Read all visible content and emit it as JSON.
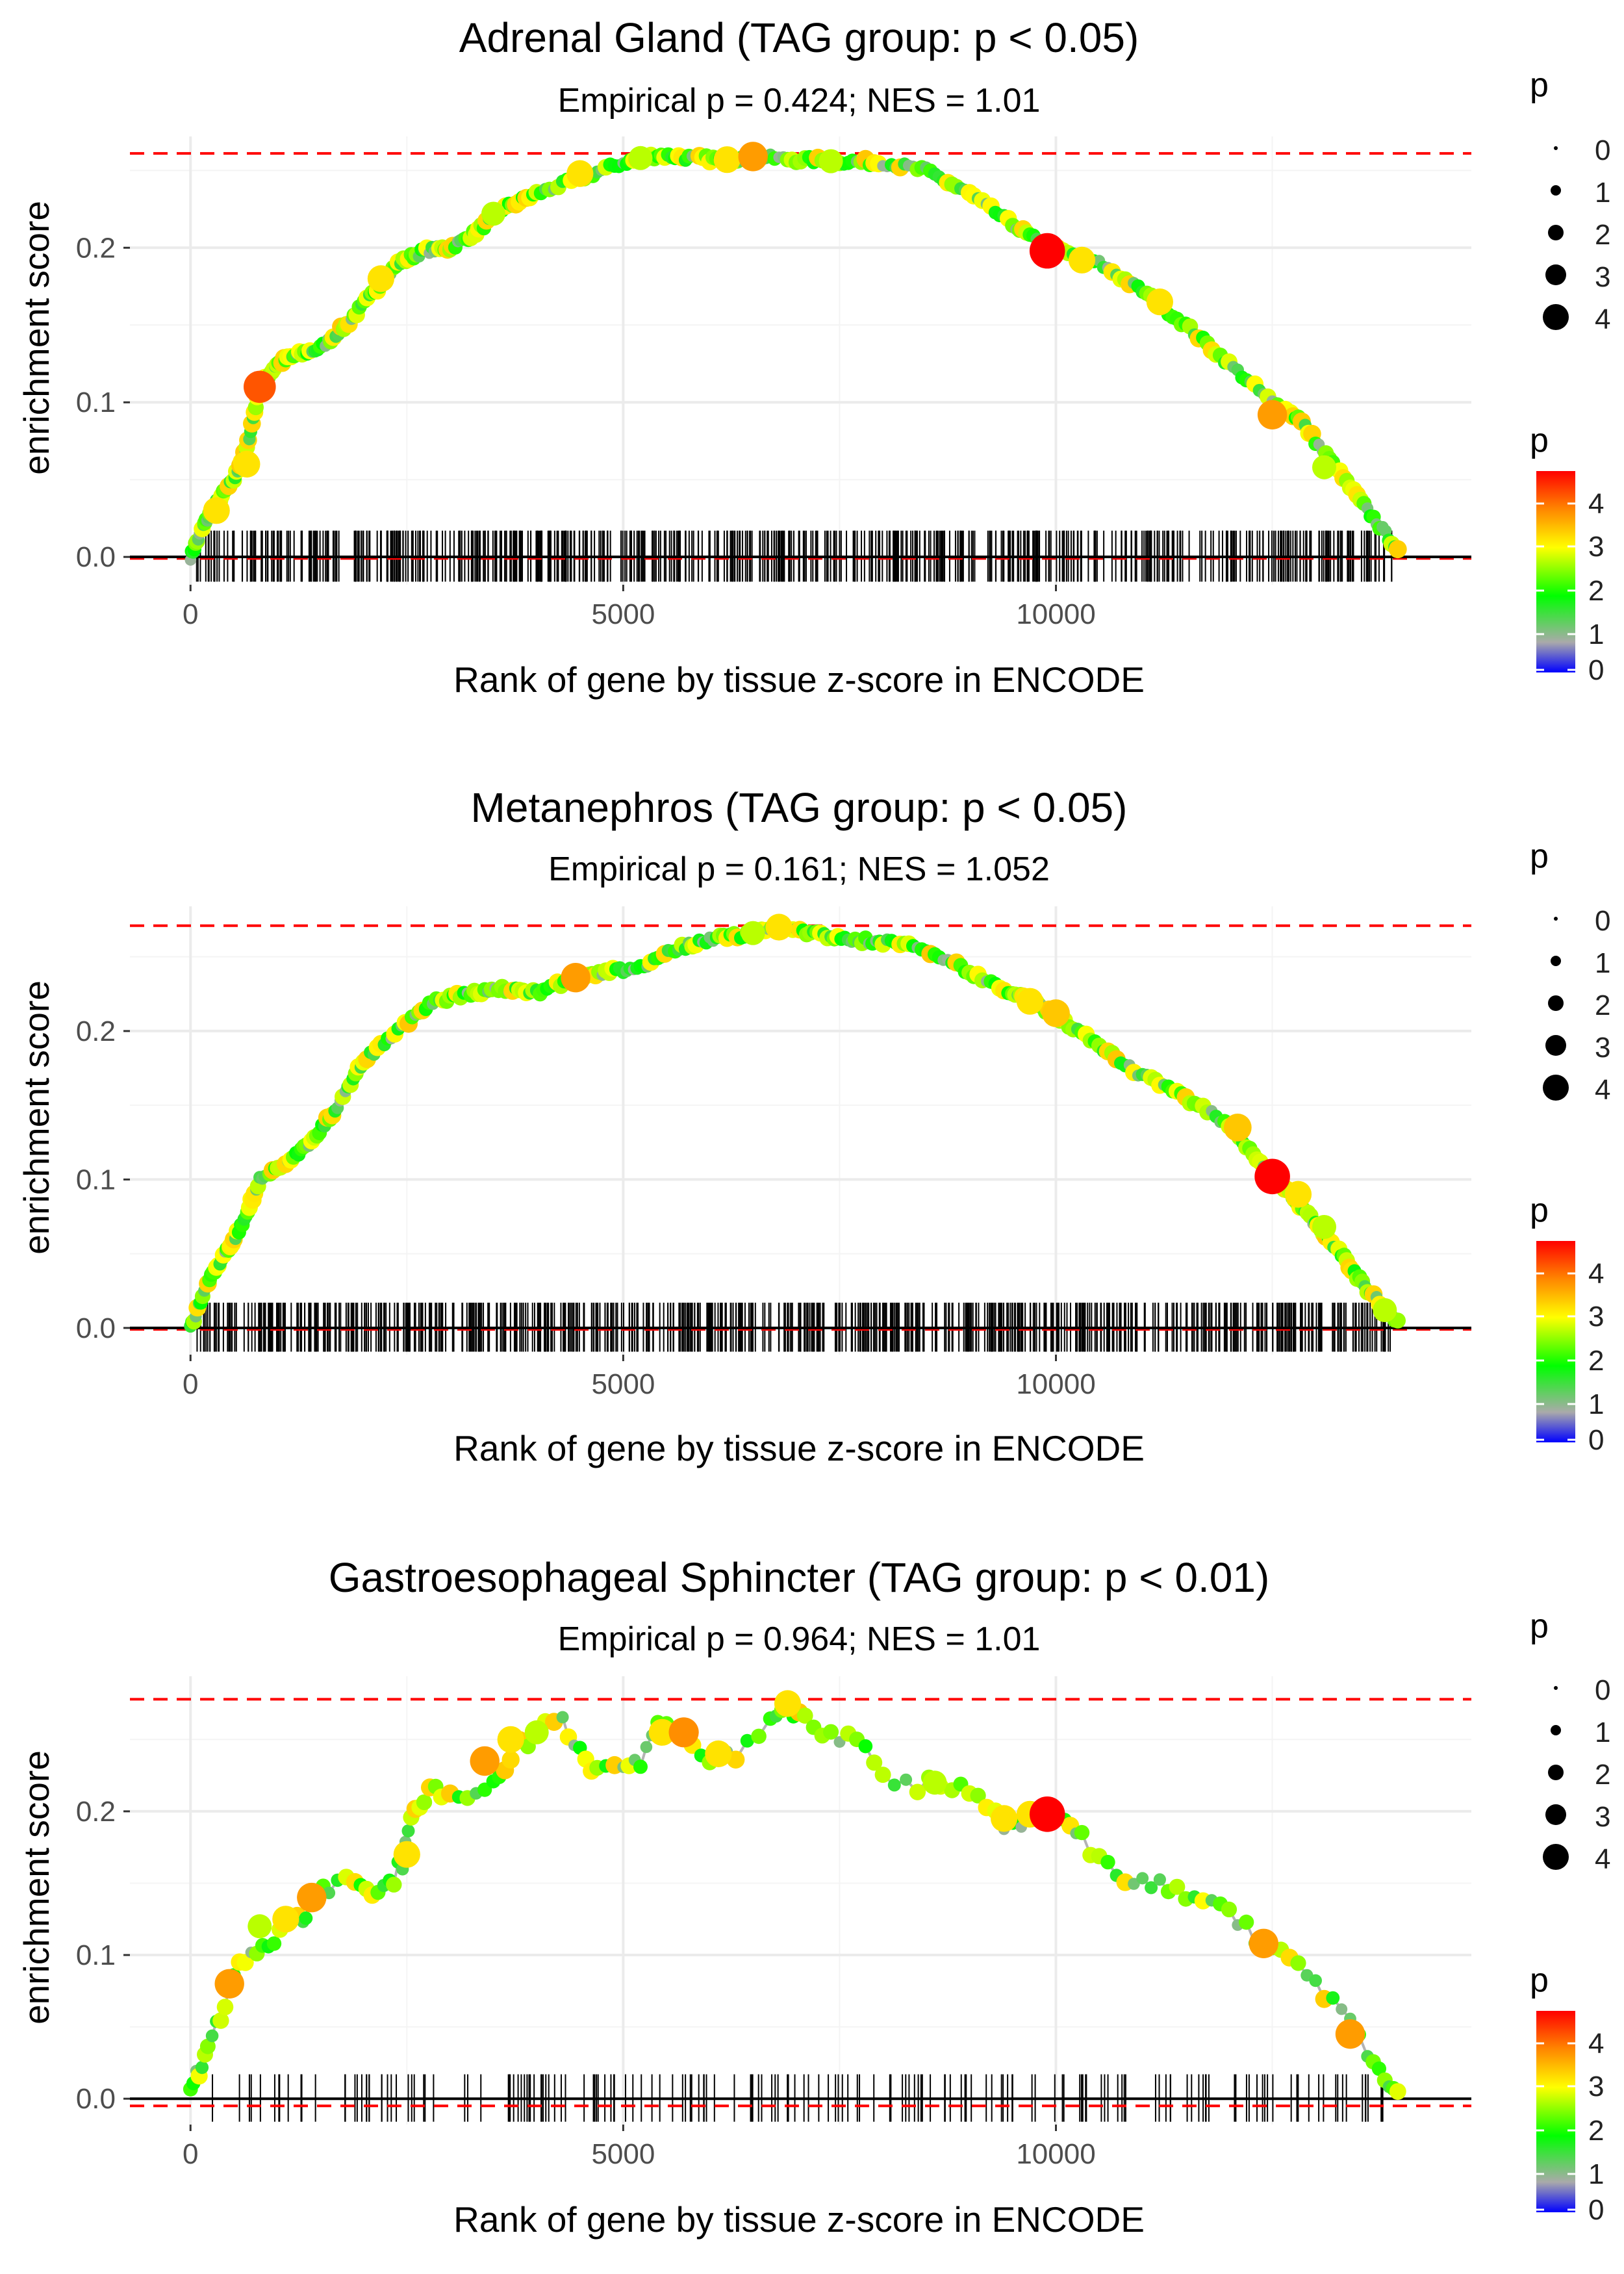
{
  "chart_data": [
    {
      "type": "line",
      "title": "Adrenal Gland (TAG group: p < 0.05)",
      "subtitle": "Empirical p = 0.424; NES = 1.01",
      "xlabel": "Rank of gene by tissue z-score in ENCODE",
      "ylabel": "enrichment score",
      "xlim": [
        -700,
        14800
      ],
      "ylim": [
        -0.018,
        0.272
      ],
      "xticks": [
        0,
        5000,
        10000
      ],
      "yticks": [
        0.0,
        0.1,
        0.2
      ],
      "xtick_labels": [
        "0",
        "5000",
        "10000"
      ],
      "ytick_labels": [
        "0.0",
        "0.1",
        "0.2"
      ],
      "max_es": 0.261,
      "min_es": -0.001,
      "x_end": 13950,
      "rug_count": 600,
      "curve": [
        [
          0,
          0
        ],
        [
          150,
          0.02
        ],
        [
          300,
          0.035
        ],
        [
          500,
          0.05
        ],
        [
          650,
          0.07
        ],
        [
          800,
          0.11
        ],
        [
          1000,
          0.125
        ],
        [
          1200,
          0.13
        ],
        [
          1500,
          0.135
        ],
        [
          1800,
          0.15
        ],
        [
          2100,
          0.17
        ],
        [
          2400,
          0.19
        ],
        [
          2700,
          0.198
        ],
        [
          3000,
          0.2
        ],
        [
          3300,
          0.21
        ],
        [
          3600,
          0.225
        ],
        [
          4000,
          0.235
        ],
        [
          4500,
          0.245
        ],
        [
          5000,
          0.255
        ],
        [
          5400,
          0.26
        ],
        [
          5800,
          0.258
        ],
        [
          6200,
          0.257
        ],
        [
          6500,
          0.259
        ],
        [
          7000,
          0.257
        ],
        [
          7500,
          0.256
        ],
        [
          8000,
          0.255
        ],
        [
          8500,
          0.25
        ],
        [
          9000,
          0.235
        ],
        [
          9500,
          0.215
        ],
        [
          9900,
          0.2
        ],
        [
          10500,
          0.19
        ],
        [
          11000,
          0.172
        ],
        [
          11500,
          0.15
        ],
        [
          12000,
          0.125
        ],
        [
          12500,
          0.1
        ],
        [
          12800,
          0.09
        ],
        [
          13200,
          0.06
        ],
        [
          13600,
          0.03
        ],
        [
          13950,
          0.005
        ]
      ],
      "highlights": [
        [
          800,
          0.11,
          4
        ],
        [
          650,
          0.06,
          3
        ],
        [
          300,
          0.03,
          3
        ],
        [
          2200,
          0.18,
          3
        ],
        [
          4500,
          0.248,
          3
        ],
        [
          6200,
          0.257,
          3
        ],
        [
          6500,
          0.259,
          3.5
        ],
        [
          9900,
          0.198,
          4.6
        ],
        [
          11200,
          0.165,
          3
        ],
        [
          12500,
          0.092,
          3.5
        ],
        [
          10300,
          0.192,
          3
        ],
        [
          13100,
          0.058,
          2.5
        ],
        [
          3500,
          0.222,
          2.5
        ],
        [
          7400,
          0.256,
          2.5
        ],
        [
          5200,
          0.258,
          2.5
        ]
      ]
    },
    {
      "type": "line",
      "title": "Metanephros (TAG group: p < 0.05)",
      "subtitle": "Empirical p = 0.161; NES = 1.052",
      "xlabel": "Rank of gene by tissue z-score in ENCODE",
      "ylabel": "enrichment score",
      "xlim": [
        -700,
        14800
      ],
      "ylim": [
        -0.018,
        0.284
      ],
      "xticks": [
        0,
        5000,
        10000
      ],
      "yticks": [
        0.0,
        0.1,
        0.2
      ],
      "xtick_labels": [
        "0",
        "5000",
        "10000"
      ],
      "ytick_labels": [
        "0.0",
        "0.1",
        "0.2"
      ],
      "max_es": 0.271,
      "min_es": -0.001,
      "x_end": 13950,
      "rug_count": 700,
      "curve": [
        [
          0,
          0
        ],
        [
          200,
          0.03
        ],
        [
          400,
          0.05
        ],
        [
          600,
          0.07
        ],
        [
          800,
          0.1
        ],
        [
          1100,
          0.11
        ],
        [
          1400,
          0.125
        ],
        [
          1700,
          0.15
        ],
        [
          2000,
          0.18
        ],
        [
          2400,
          0.2
        ],
        [
          2800,
          0.22
        ],
        [
          3200,
          0.225
        ],
        [
          3600,
          0.228
        ],
        [
          4000,
          0.226
        ],
        [
          4400,
          0.235
        ],
        [
          4800,
          0.24
        ],
        [
          5200,
          0.242
        ],
        [
          5600,
          0.255
        ],
        [
          6000,
          0.262
        ],
        [
          6400,
          0.265
        ],
        [
          6800,
          0.27
        ],
        [
          7200,
          0.265
        ],
        [
          7600,
          0.262
        ],
        [
          8000,
          0.26
        ],
        [
          8500,
          0.255
        ],
        [
          9000,
          0.24
        ],
        [
          9500,
          0.225
        ],
        [
          9800,
          0.218
        ],
        [
          10000,
          0.21
        ],
        [
          10500,
          0.19
        ],
        [
          11000,
          0.17
        ],
        [
          11500,
          0.155
        ],
        [
          12000,
          0.137
        ],
        [
          12400,
          0.11
        ],
        [
          12700,
          0.09
        ],
        [
          13000,
          0.07
        ],
        [
          13300,
          0.05
        ],
        [
          13600,
          0.025
        ],
        [
          13950,
          0.005
        ]
      ],
      "highlights": [
        [
          4450,
          0.236,
          3.5
        ],
        [
          6800,
          0.27,
          3
        ],
        [
          6500,
          0.266,
          2.5
        ],
        [
          9700,
          0.22,
          3
        ],
        [
          10000,
          0.212,
          3.2
        ],
        [
          12100,
          0.135,
          3.2
        ],
        [
          12500,
          0.102,
          4.6
        ],
        [
          12800,
          0.09,
          3
        ],
        [
          13100,
          0.068,
          2.5
        ],
        [
          13800,
          0.012,
          2.5
        ]
      ]
    },
    {
      "type": "line",
      "title": "Gastroesophageal Sphincter (TAG group: p < 0.01)",
      "subtitle": "Empirical p = 0.964; NES = 1.01",
      "xlabel": "Rank of gene by tissue z-score in ENCODE",
      "ylabel": "enrichment score",
      "xlim": [
        -700,
        14800
      ],
      "ylim": [
        -0.018,
        0.294
      ],
      "xticks": [
        0,
        5000,
        10000
      ],
      "yticks": [
        0.0,
        0.1,
        0.2
      ],
      "xtick_labels": [
        "0",
        "5000",
        "10000"
      ],
      "ytick_labels": [
        "0.0",
        "0.1",
        "0.2"
      ],
      "max_es": 0.278,
      "min_es": -0.005,
      "x_end": 13950,
      "rug_count": 180,
      "curve": [
        [
          0,
          0.005
        ],
        [
          100,
          0.02
        ],
        [
          200,
          0.04
        ],
        [
          350,
          0.055
        ],
        [
          500,
          0.09
        ],
        [
          700,
          0.1
        ],
        [
          900,
          0.11
        ],
        [
          1100,
          0.118
        ],
        [
          1300,
          0.125
        ],
        [
          1400,
          0.14
        ],
        [
          1600,
          0.145
        ],
        [
          1900,
          0.155
        ],
        [
          2100,
          0.14
        ],
        [
          2300,
          0.15
        ],
        [
          2450,
          0.165
        ],
        [
          2550,
          0.2
        ],
        [
          2700,
          0.21
        ],
        [
          2900,
          0.215
        ],
        [
          3200,
          0.21
        ],
        [
          3500,
          0.22
        ],
        [
          3700,
          0.24
        ],
        [
          4000,
          0.255
        ],
        [
          4300,
          0.26
        ],
        [
          4500,
          0.24
        ],
        [
          4700,
          0.225
        ],
        [
          5000,
          0.235
        ],
        [
          5200,
          0.23
        ],
        [
          5400,
          0.26
        ],
        [
          5700,
          0.255
        ],
        [
          6000,
          0.235
        ],
        [
          6300,
          0.24
        ],
        [
          6700,
          0.26
        ],
        [
          6900,
          0.275
        ],
        [
          7100,
          0.265
        ],
        [
          7400,
          0.25
        ],
        [
          7700,
          0.248
        ],
        [
          8000,
          0.225
        ],
        [
          8400,
          0.218
        ],
        [
          8800,
          0.22
        ],
        [
          9100,
          0.205
        ],
        [
          9400,
          0.19
        ],
        [
          9700,
          0.192
        ],
        [
          9900,
          0.198
        ],
        [
          10100,
          0.195
        ],
        [
          10300,
          0.18
        ],
        [
          10600,
          0.16
        ],
        [
          10900,
          0.155
        ],
        [
          11200,
          0.15
        ],
        [
          11500,
          0.145
        ],
        [
          11800,
          0.138
        ],
        [
          12100,
          0.125
        ],
        [
          12400,
          0.108
        ],
        [
          12700,
          0.095
        ],
        [
          13000,
          0.08
        ],
        [
          13300,
          0.06
        ],
        [
          13600,
          0.035
        ],
        [
          13800,
          0.015
        ],
        [
          13950,
          0.005
        ]
      ],
      "highlights": [
        [
          450,
          0.08,
          3.5
        ],
        [
          1400,
          0.14,
          3.5
        ],
        [
          1100,
          0.125,
          3
        ],
        [
          3400,
          0.235,
          3.5
        ],
        [
          3700,
          0.25,
          3
        ],
        [
          5450,
          0.255,
          3
        ],
        [
          5700,
          0.255,
          3.6
        ],
        [
          6100,
          0.24,
          3
        ],
        [
          6900,
          0.275,
          3
        ],
        [
          9700,
          0.198,
          3
        ],
        [
          9900,
          0.198,
          4.6
        ],
        [
          9400,
          0.195,
          3
        ],
        [
          12400,
          0.108,
          3.5
        ],
        [
          13400,
          0.045,
          3.5
        ],
        [
          2500,
          0.17,
          3
        ],
        [
          800,
          0.12,
          2.5
        ],
        [
          4000,
          0.255,
          2.5
        ],
        [
          8600,
          0.22,
          2.5
        ]
      ]
    }
  ],
  "size_legend": {
    "title": "p",
    "labels": [
      "0",
      "1",
      "2",
      "3",
      "4"
    ]
  },
  "color_legend": {
    "title": "p",
    "labels": [
      "4",
      "3",
      "2",
      "1",
      "0"
    ]
  },
  "colors": {
    "ref_line": "#ff0000",
    "zero_line": "#000000",
    "curve": "#b3b3b3",
    "grid": "#ebebeb",
    "gradient": [
      "#0000ff",
      "#aaaaaa",
      "#00ff00",
      "#ffff00",
      "#ff8000",
      "#ff0000"
    ]
  }
}
